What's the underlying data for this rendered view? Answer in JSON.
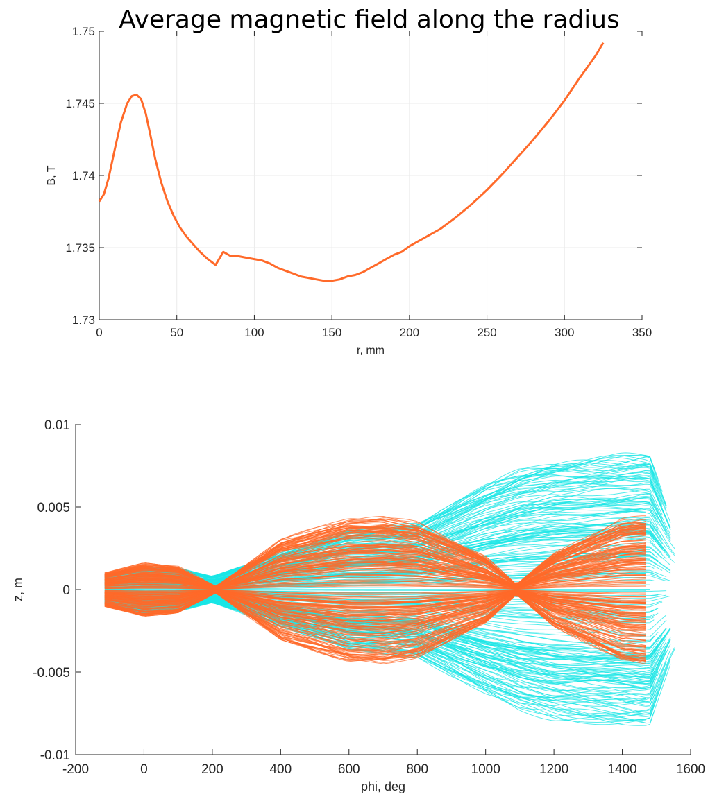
{
  "chart_data": [
    {
      "type": "line",
      "title": "Average magnetic field along the radius",
      "xlabel": "r, mm",
      "ylabel": "B, T",
      "xlim": [
        0,
        350
      ],
      "ylim": [
        1.73,
        1.75
      ],
      "xticks": [
        0,
        50,
        100,
        150,
        200,
        250,
        300,
        350
      ],
      "xtick_labels": [
        "0",
        "50",
        "100",
        "150",
        "200",
        "250",
        "300",
        "350"
      ],
      "yticks": [
        1.73,
        1.735,
        1.74,
        1.745,
        1.75
      ],
      "ytick_labels": [
        "1.73",
        "1.735",
        "1.74",
        "1.745",
        "1.75"
      ],
      "grid": true,
      "colors": {
        "series": "#ff6a2a"
      },
      "series": [
        {
          "x": [
            0,
            3,
            6,
            10,
            14,
            18,
            21,
            24,
            27,
            30,
            33,
            36,
            40,
            44,
            48,
            52,
            56,
            60,
            65,
            70,
            75,
            80,
            85,
            90,
            95,
            100,
            105,
            110,
            115,
            120,
            125,
            130,
            135,
            140,
            145,
            150,
            155,
            160,
            165,
            170,
            175,
            180,
            185,
            190,
            195,
            200,
            205,
            210,
            220,
            230,
            240,
            250,
            260,
            270,
            280,
            290,
            300,
            310,
            320,
            325
          ],
          "values": [
            1.7382,
            1.7387,
            1.7398,
            1.7418,
            1.7437,
            1.745,
            1.7455,
            1.7456,
            1.7453,
            1.7443,
            1.7428,
            1.7412,
            1.7395,
            1.7382,
            1.7372,
            1.7364,
            1.7358,
            1.7353,
            1.7347,
            1.7342,
            1.7338,
            1.7347,
            1.7344,
            1.7344,
            1.7343,
            1.7342,
            1.7341,
            1.7339,
            1.7336,
            1.7334,
            1.7332,
            1.733,
            1.7329,
            1.7328,
            1.7327,
            1.7327,
            1.7328,
            1.733,
            1.7331,
            1.7333,
            1.7336,
            1.7339,
            1.7342,
            1.7345,
            1.7347,
            1.7351,
            1.7354,
            1.7357,
            1.7363,
            1.7371,
            1.738,
            1.739,
            1.7401,
            1.7413,
            1.7425,
            1.7438,
            1.7452,
            1.7468,
            1.7483,
            1.7492
          ]
        }
      ]
    },
    {
      "type": "line",
      "title": "",
      "xlabel": "phi, deg",
      "ylabel": "z, m",
      "xlim": [
        -200,
        1600
      ],
      "ylim": [
        -0.01,
        0.01
      ],
      "xticks": [
        -200,
        0,
        200,
        400,
        600,
        800,
        1000,
        1200,
        1400,
        1600
      ],
      "xtick_labels": [
        "-200",
        "0",
        "200",
        "400",
        "600",
        "800",
        "1000",
        "1200",
        "1400",
        "1600"
      ],
      "yticks": [
        -0.01,
        -0.005,
        0,
        0.005,
        0.01
      ],
      "ytick_labels": [
        "-0.01",
        "-0.005",
        "0",
        "0.005",
        "0.01"
      ],
      "grid": false,
      "colors": {
        "cyan_group": "#1ae6e6",
        "orange_group": "#ff6a2a"
      },
      "groups": [
        {
          "color": "cyan",
          "description_values": {
            "phi_start": -115,
            "phi_end_range": [
              1470,
              1555
            ],
            "z_envelope_x": [
              -115,
              0,
              100,
              200,
              400,
              600,
              800,
              1000,
              1100,
              1200,
              1400,
              1480,
              1550
            ],
            "z_envelope_max": [
              0.0009,
              0.0014,
              0.0013,
              0.0008,
              0.0022,
              0.0036,
              0.004,
              0.0063,
              0.0072,
              0.0077,
              0.0081,
              0.0082,
              0.004
            ]
          }
        },
        {
          "color": "orange",
          "description_values": {
            "phi_start": -115,
            "phi_end": 1475,
            "z_envelope_x": [
              -115,
              0,
              100,
              210,
              400,
              600,
              700,
              800,
              1000,
              1090,
              1200,
              1400,
              1475
            ],
            "z_envelope_max": [
              0.001,
              0.0016,
              0.0014,
              0.0002,
              0.003,
              0.0043,
              0.0044,
              0.004,
              0.002,
              0.0003,
              0.0022,
              0.0042,
              0.0044
            ]
          }
        }
      ]
    }
  ]
}
